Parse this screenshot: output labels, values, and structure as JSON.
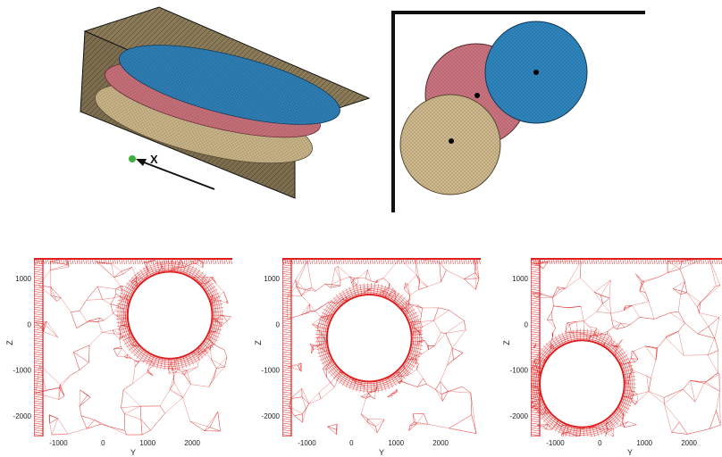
{
  "top_left": {
    "axis_label": "X",
    "colors": {
      "wall": "#8a7a58",
      "blue": "#2e7fb6",
      "red": "#c8707a",
      "tan": "#c9b488",
      "dot": "#3caf3c"
    }
  },
  "top_right": {
    "colors": {
      "blue": "#2e86bf",
      "red": "#cc7480",
      "tan": "#cfb98c"
    }
  },
  "mesh_color": "#e02020",
  "panels": [
    {
      "id": "mesh-panel-1",
      "y_axis_label": "Z",
      "x_axis_label": "Y",
      "y_ticks": [
        "1000",
        "0",
        "-1000",
        "-2000"
      ],
      "x_ticks": [
        "-1000",
        "0",
        "1000",
        "2000"
      ],
      "circle_center": [
        1500,
        200
      ]
    },
    {
      "id": "mesh-panel-2",
      "y_axis_label": "Z",
      "x_axis_label": "Y",
      "y_ticks": [
        "1000",
        "0",
        "-1000",
        "-2000"
      ],
      "x_ticks": [
        "-1000",
        "0",
        "1000",
        "2000"
      ],
      "circle_center": [
        400,
        -300
      ]
    },
    {
      "id": "mesh-panel-3",
      "y_axis_label": "Z",
      "x_axis_label": "Y",
      "y_ticks": [
        "1000",
        "0",
        "-1000",
        "-2000"
      ],
      "x_ticks": [
        "-1000",
        "0",
        "1000",
        "2000"
      ],
      "circle_center": [
        -400,
        -1300
      ]
    }
  ]
}
